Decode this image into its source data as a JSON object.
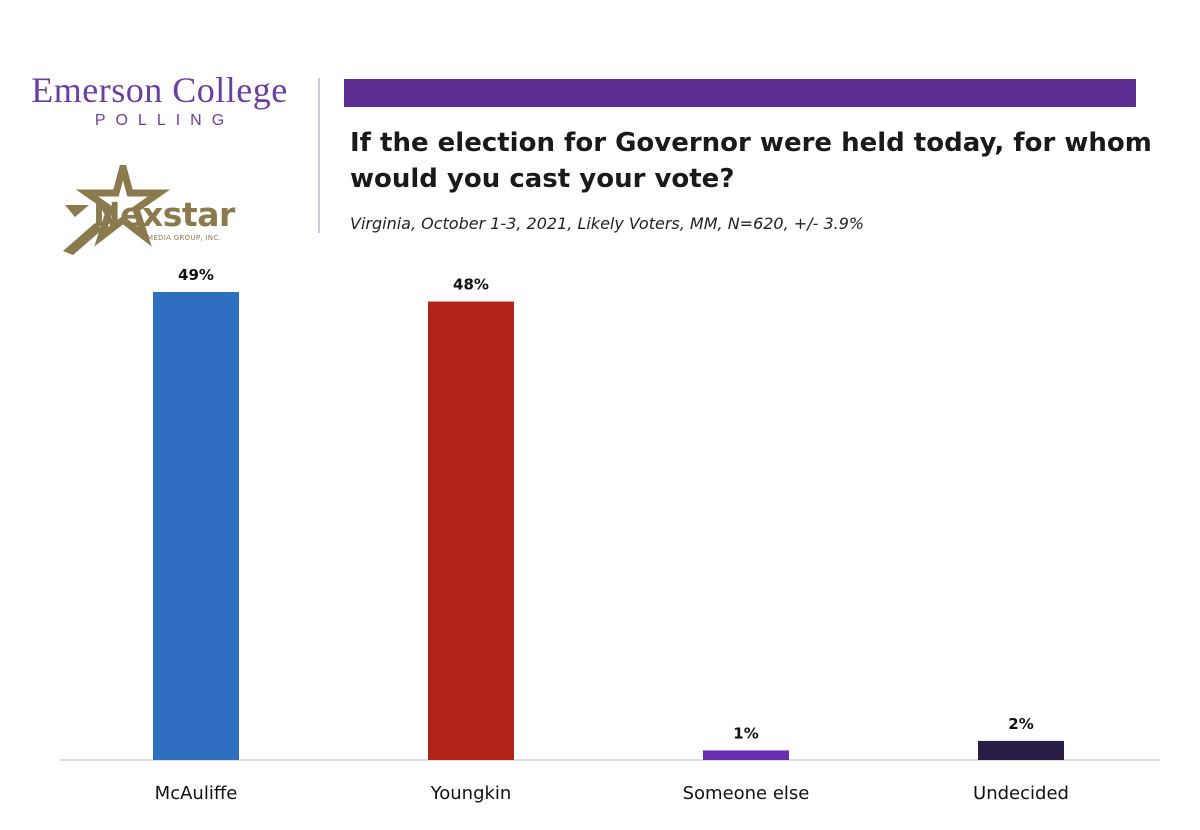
{
  "logos": {
    "emerson_name": "Emerson College",
    "emerson_sub": "POLLING",
    "nexstar_name": "Nexstar",
    "nexstar_tagline": "MEDIA GROUP, INC."
  },
  "colors": {
    "accent_bar": "#5b2d90",
    "emerson_text": "#6a3fa0",
    "nexstar_gold": "#8a7a4e"
  },
  "chart_data": {
    "type": "bar",
    "title": "If the election for Governor were held today, for whom would you cast your vote?",
    "subtitle": "Virginia, October 1-3, 2021, Likely Voters, MM, N=620, +/- 3.9%",
    "categories": [
      "McAuliffe",
      "Youngkin",
      "Someone else",
      "Undecided"
    ],
    "values": [
      49,
      48,
      1,
      2
    ],
    "value_labels": [
      "49%",
      "48%",
      "1%",
      "2%"
    ],
    "bar_colors": [
      "#2e6fbf",
      "#b02318",
      "#6a2fb0",
      "#2a1d45"
    ],
    "ylim": [
      0,
      49
    ],
    "grid": false,
    "legend": "none"
  }
}
